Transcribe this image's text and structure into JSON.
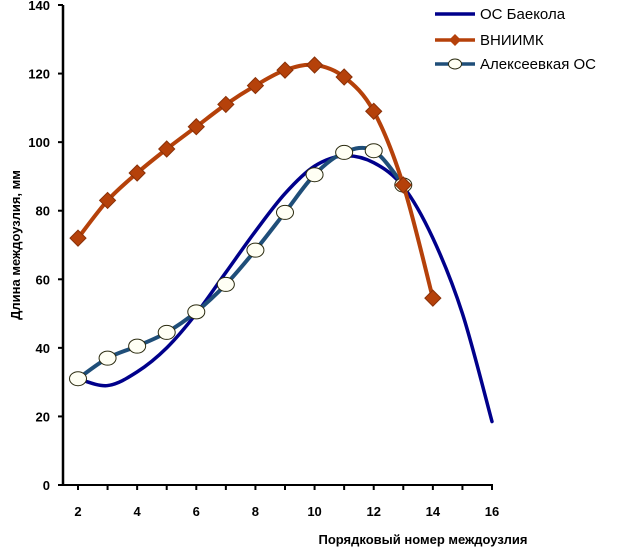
{
  "chart_data": {
    "type": "line",
    "title": "",
    "xlabel": "Порядковый номер междоузлия",
    "ylabel": "Длина междоузлия, мм",
    "xlim": [
      2,
      16
    ],
    "ylim": [
      0,
      140
    ],
    "x_ticks": [
      2,
      4,
      6,
      8,
      10,
      12,
      14,
      16
    ],
    "y_ticks": [
      0,
      20,
      40,
      60,
      80,
      100,
      120,
      140
    ],
    "grid": false,
    "legend_position": "top-right",
    "series": [
      {
        "name": "ОС Баекола",
        "color": "#00008B",
        "marker": "none",
        "x": [
          2,
          3,
          4,
          5,
          6,
          7,
          8,
          9,
          10,
          11,
          12,
          13,
          14,
          15,
          16
        ],
        "values": [
          31,
          29,
          33,
          40,
          50,
          62,
          74,
          85,
          93,
          96,
          94,
          87,
          72,
          50,
          18.5
        ]
      },
      {
        "name": "ВНИИМК",
        "color": "#B5410A",
        "marker": "diamond",
        "x": [
          2,
          3,
          4,
          5,
          6,
          7,
          8,
          9,
          10,
          11,
          12,
          13,
          14
        ],
        "values": [
          72,
          83,
          91,
          98,
          104.5,
          111,
          116.5,
          121,
          122.5,
          119,
          109,
          87.5,
          54.5
        ]
      },
      {
        "name": "Алексеевкая ОС",
        "color": "#1F4E79",
        "marker": "circle",
        "x": [
          2,
          3,
          4,
          5,
          6,
          7,
          8,
          9,
          10,
          11,
          12,
          13
        ],
        "values": [
          31,
          37,
          40.5,
          44.5,
          50.5,
          58.5,
          68.5,
          79.5,
          90.5,
          97,
          97.5,
          87.5
        ]
      }
    ]
  }
}
